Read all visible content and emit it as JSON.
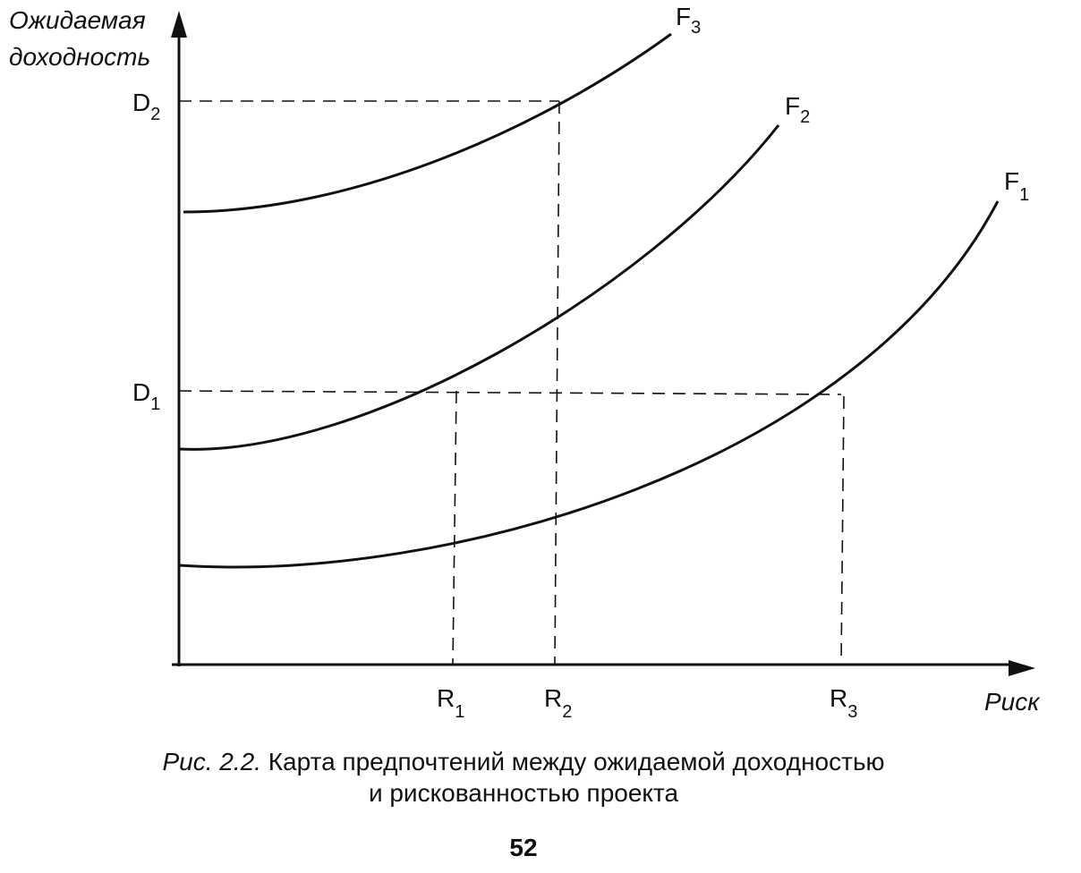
{
  "axes": {
    "y_label": [
      "Ожидаемая",
      "доходность"
    ],
    "x_label": "Риск"
  },
  "y_marks": [
    {
      "text": "D",
      "sub": "2"
    },
    {
      "text": "D",
      "sub": "1"
    }
  ],
  "curves": [
    {
      "text": "F",
      "sub": "3"
    },
    {
      "text": "F",
      "sub": "2"
    },
    {
      "text": "F",
      "sub": "1"
    }
  ],
  "x_marks": [
    {
      "text": "R",
      "sub": "1"
    },
    {
      "text": "R",
      "sub": "2"
    },
    {
      "text": "R",
      "sub": "3"
    }
  ],
  "caption": {
    "label": "Рис. 2.2.",
    "lines": [
      "Карта предпочтений между ожидаемой доходностью",
      "и рискованностью проекта"
    ]
  },
  "page_number": "52"
}
